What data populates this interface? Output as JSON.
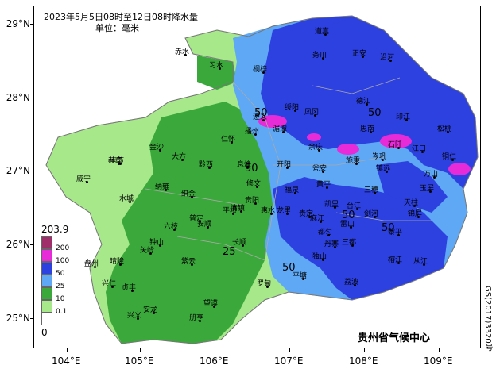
{
  "title": "2023年5月5日08时至12日08时降水量",
  "unit": "单位：毫米",
  "credit": "贵州省气候中心",
  "approval": "GS(2017)3320号",
  "lat_labels": [
    "29°N",
    "28°N",
    "27°N",
    "26°N",
    "25°N"
  ],
  "lon_labels": [
    "104°E",
    "105°E",
    "106°E",
    "107°E",
    "108°E",
    "109°E"
  ],
  "legend": {
    "max": "203.9",
    "min": "0",
    "levels": [
      {
        "label": "200",
        "color": "#9e2f6a"
      },
      {
        "label": "100",
        "color": "#e72bd9"
      },
      {
        "label": "50",
        "color": "#2d40e0"
      },
      {
        "label": "25",
        "color": "#5ea8f5"
      },
      {
        "label": "10",
        "color": "#3aa83a"
      },
      {
        "label": "0.1",
        "color": "#a6e88a"
      },
      {
        "label": "",
        "color": "#ffffff"
      }
    ]
  },
  "contour_labels": [
    "50",
    "50",
    "50",
    "50",
    "50",
    "25",
    "50"
  ],
  "cities": [
    "道真",
    "正安",
    "务川",
    "沿河",
    "赤水",
    "习水",
    "桐梓",
    "绥阳",
    "凤冈",
    "德江",
    "印江",
    "松桃",
    "遵义",
    "湄潭",
    "思南",
    "石阡",
    "江口",
    "铜仁",
    "仁怀",
    "播州",
    "余庆",
    "岑巩",
    "万山",
    "金沙",
    "毕节",
    "大方",
    "黔西",
    "息烽",
    "开阳",
    "瓮安",
    "施秉",
    "镇远",
    "玉屏",
    "赫章",
    "织金",
    "修文",
    "贵阳",
    "福泉",
    "凯里",
    "三穗",
    "天柱",
    "威宁",
    "纳雍",
    "清镇",
    "龙里",
    "麻江",
    "台江",
    "剑河",
    "锦屏",
    "六枝",
    "普定",
    "安顺",
    "平坝",
    "惠水",
    "丹寨",
    "雷山",
    "黎平",
    "盘州",
    "晴隆",
    "关岭",
    "长顺",
    "都匀",
    "三都",
    "榕江",
    "从江",
    "兴仁",
    "贞丰",
    "紫云",
    "罗甸",
    "平塘",
    "独山",
    "荔波",
    "兴义",
    "安龙",
    "册亨",
    "望谟",
    "水城",
    "钟山",
    "黄平",
    "贵定"
  ]
}
